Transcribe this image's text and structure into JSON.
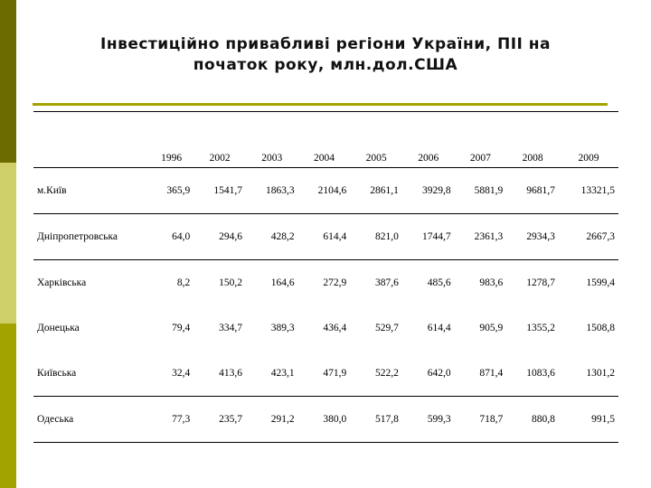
{
  "title_line1": "Інвестиційно привабливі регіони України, ПІІ на",
  "title_line2": "початок року, млн.дол.США",
  "years": [
    "1996",
    "2002",
    "2003",
    "2004",
    "2005",
    "2006",
    "2007",
    "2008",
    "2009"
  ],
  "rows": [
    {
      "region": "м.Київ",
      "values": [
        "365,9",
        "1541,7",
        "1863,3",
        "2104,6",
        "2861,1",
        "3929,8",
        "5881,9",
        "9681,7",
        "13321,5"
      ]
    },
    {
      "region": "Дніпропетровська",
      "values": [
        "64,0",
        "294,6",
        "428,2",
        "614,4",
        "821,0",
        "1744,7",
        "2361,3",
        "2934,3",
        "2667,3"
      ]
    },
    {
      "region": "Харківська",
      "values": [
        "8,2",
        "150,2",
        "164,6",
        "272,9",
        "387,6",
        "485,6",
        "983,6",
        "1278,7",
        "1599,4"
      ]
    },
    {
      "region": "Донецька",
      "values": [
        "79,4",
        "334,7",
        "389,3",
        "436,4",
        "529,7",
        "614,4",
        "905,9",
        "1355,2",
        "1508,8"
      ]
    },
    {
      "region": "Київська",
      "values": [
        "32,4",
        "413,6",
        "423,1",
        "471,9",
        "522,2",
        "642,0",
        "871,4",
        "1083,6",
        "1301,2"
      ]
    },
    {
      "region": "Одеська",
      "values": [
        "77,3",
        "235,7",
        "291,2",
        "380,0",
        "517,8",
        "599,3",
        "718,7",
        "880,8",
        "991,5"
      ]
    }
  ],
  "colors": {
    "bar_dark": "#6b6b00",
    "bar_light": "#cfcf6a",
    "accent": "#a3a300"
  }
}
